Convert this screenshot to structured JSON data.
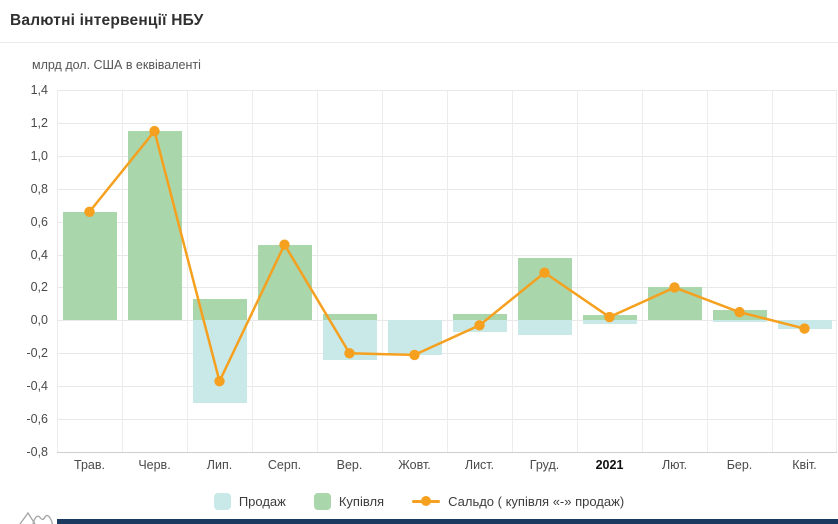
{
  "header": {
    "title": "Валютні інтервенції НБУ"
  },
  "chart_data": {
    "type": "bar",
    "title": "Валютні інтервенції НБУ",
    "unit_label": "млрд дол. США в еквіваленті",
    "categories": [
      "Трав.",
      "Черв.",
      "Лип.",
      "Серп.",
      "Вер.",
      "Жовт.",
      "Лист.",
      "Груд.",
      "2021",
      "Лют.",
      "Бер.",
      "Квіт."
    ],
    "emphasized_category": "2021",
    "yticks": [
      "1,4",
      "1,2",
      "1,0",
      "0,8",
      "0,6",
      "0,4",
      "0,2",
      "0,0",
      "-0,2",
      "-0,4",
      "-0,6",
      "-0,8"
    ],
    "ylim": [
      -0.8,
      1.4
    ],
    "ytick_step": 0.2,
    "grid": true,
    "legend_position": "bottom",
    "series": [
      {
        "name": "Продаж",
        "type": "column",
        "color": "#c9e9e9",
        "values": [
          0,
          0,
          -0.5,
          0,
          -0.24,
          -0.21,
          -0.07,
          -0.09,
          -0.02,
          0,
          -0.01,
          -0.05
        ]
      },
      {
        "name": "Купівля",
        "type": "column",
        "color": "#a9d6ab",
        "values": [
          0.66,
          1.15,
          0.13,
          0.46,
          0.04,
          0,
          0.04,
          0.38,
          0.03,
          0.2,
          0.06,
          0
        ]
      },
      {
        "name": "Сальдо ( купівля «-» продаж)",
        "type": "line",
        "color": "#f5a01f",
        "values": [
          0.66,
          1.15,
          -0.37,
          0.46,
          -0.2,
          -0.21,
          -0.03,
          0.29,
          0.02,
          0.2,
          0.05,
          -0.05
        ]
      }
    ]
  },
  "colors": {
    "grid": "#e8e8e8",
    "axis_text": "#4a4a4a",
    "footer_strip": "#1b3a5f",
    "watermark": "#a8a8a8"
  }
}
